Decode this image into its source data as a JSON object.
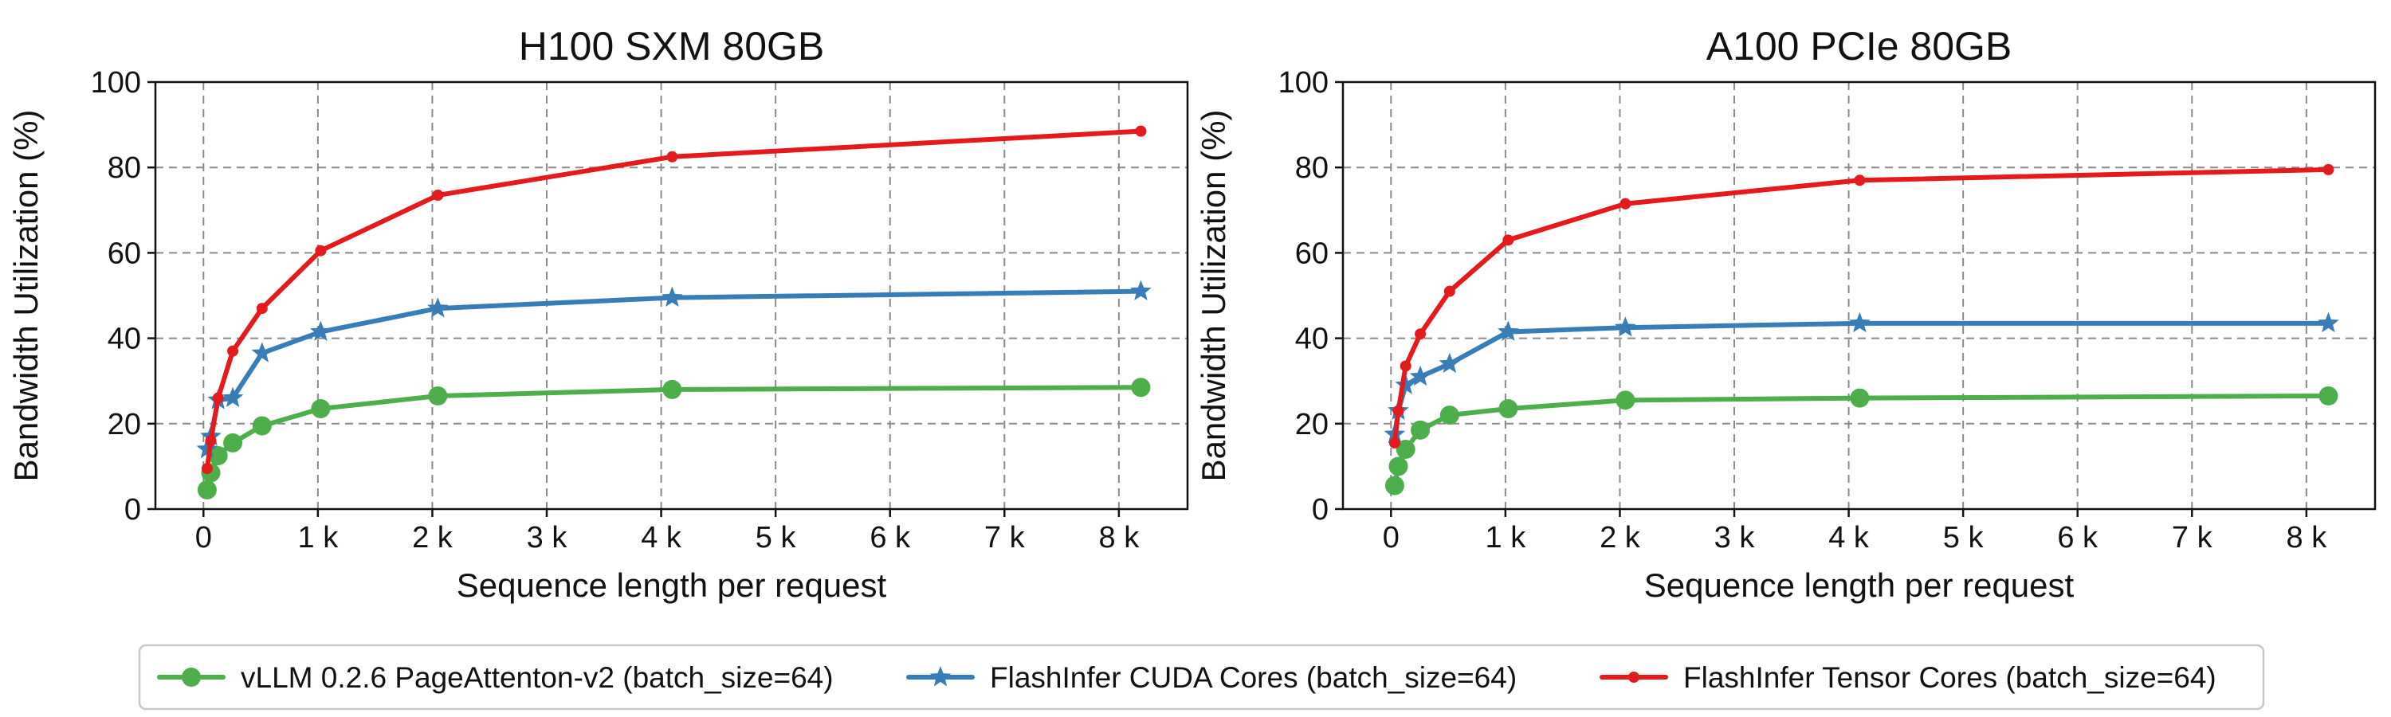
{
  "chart_data": [
    {
      "type": "line",
      "title": "H100 SXM 80GB",
      "xlabel": "Sequence length per request",
      "ylabel": "Bandwidth Utilization (%)",
      "xlim": [
        -420,
        8600
      ],
      "ylim": [
        0,
        100
      ],
      "xticks": [
        0,
        1000,
        2000,
        3000,
        4000,
        5000,
        6000,
        7000,
        8000
      ],
      "xtick_labels": [
        "0",
        "1 k",
        "2 k",
        "3 k",
        "4 k",
        "5 k",
        "6 k",
        "7 k",
        "8 k"
      ],
      "yticks": [
        0,
        20,
        40,
        60,
        80,
        100
      ],
      "ytick_labels": [
        "0",
        "20",
        "40",
        "60",
        "80",
        "100"
      ],
      "grid": true,
      "series": [
        {
          "name": "vLLM 0.2.6 PageAttenton-v2 (batch_size=64)",
          "color": "#4daf4a",
          "marker": "circle",
          "x": [
            32,
            64,
            128,
            256,
            512,
            1024,
            2048,
            4096,
            8192
          ],
          "y": [
            4.5,
            8.5,
            12.5,
            15.5,
            19.5,
            23.5,
            26.5,
            28,
            28.5
          ]
        },
        {
          "name": "FlashInfer CUDA Cores (batch_size=64)",
          "color": "#377eb8",
          "marker": "star",
          "x": [
            32,
            64,
            128,
            256,
            512,
            1024,
            2048,
            4096,
            8192
          ],
          "y": [
            14,
            17,
            25.5,
            26,
            36.5,
            41.5,
            47,
            49.5,
            51
          ]
        },
        {
          "name": "FlashInfer Tensor Cores (batch_size=64)",
          "color": "#e41a1c",
          "marker": "dot",
          "x": [
            32,
            64,
            128,
            256,
            512,
            1024,
            2048,
            4096,
            8192
          ],
          "y": [
            9.5,
            16,
            26,
            37,
            47,
            60.5,
            73.5,
            82.5,
            88.5
          ]
        }
      ]
    },
    {
      "type": "line",
      "title": "A100 PCIe 80GB",
      "xlabel": "Sequence length per request",
      "ylabel": "Bandwidth Utilization (%)",
      "xlim": [
        -420,
        8600
      ],
      "ylim": [
        0,
        100
      ],
      "xticks": [
        0,
        1000,
        2000,
        3000,
        4000,
        5000,
        6000,
        7000,
        8000
      ],
      "xtick_labels": [
        "0",
        "1 k",
        "2 k",
        "3 k",
        "4 k",
        "5 k",
        "6 k",
        "7 k",
        "8 k"
      ],
      "yticks": [
        0,
        20,
        40,
        60,
        80,
        100
      ],
      "ytick_labels": [
        "0",
        "20",
        "40",
        "60",
        "80",
        "100"
      ],
      "grid": true,
      "series": [
        {
          "name": "vLLM 0.2.6 PageAttenton-v2 (batch_size=64)",
          "color": "#4daf4a",
          "marker": "circle",
          "x": [
            32,
            64,
            128,
            256,
            512,
            1024,
            2048,
            4096,
            8192
          ],
          "y": [
            5.5,
            10,
            14,
            18.5,
            22,
            23.5,
            25.5,
            26,
            26.5
          ]
        },
        {
          "name": "FlashInfer CUDA Cores (batch_size=64)",
          "color": "#377eb8",
          "marker": "star",
          "x": [
            32,
            64,
            128,
            256,
            512,
            1024,
            2048,
            4096,
            8192
          ],
          "y": [
            17.5,
            23,
            29,
            31,
            34,
            41.5,
            42.5,
            43.5,
            43.5
          ]
        },
        {
          "name": "FlashInfer Tensor Cores (batch_size=64)",
          "color": "#e41a1c",
          "marker": "dot",
          "x": [
            32,
            64,
            128,
            256,
            512,
            1024,
            2048,
            4096,
            8192
          ],
          "y": [
            15.5,
            23,
            33.5,
            41,
            51,
            63,
            71.5,
            77,
            79.5
          ]
        }
      ]
    }
  ],
  "legend": {
    "placement": "bottom-center",
    "entries": [
      {
        "label": "vLLM 0.2.6 PageAttenton-v2 (batch_size=64)",
        "color": "#4daf4a",
        "marker": "circle"
      },
      {
        "label": "FlashInfer CUDA Cores (batch_size=64)",
        "color": "#377eb8",
        "marker": "star"
      },
      {
        "label": "FlashInfer Tensor Cores (batch_size=64)",
        "color": "#e41a1c",
        "marker": "dot"
      }
    ]
  }
}
